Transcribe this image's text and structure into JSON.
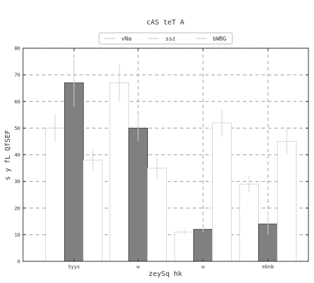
{
  "chart_data": {
    "type": "bar",
    "title": "cAS teT A",
    "xlabel": "zeySq hk",
    "ylabel": "s y fL QfSEF",
    "categories": [
      "Syyx",
      "w",
      "w",
      "eGnb"
    ],
    "ylim": [
      0,
      80
    ],
    "yticks": [
      0,
      10,
      20,
      30,
      40,
      50,
      60,
      70,
      80
    ],
    "grid": true,
    "legend_position": "top-center",
    "series": [
      {
        "name": "vNa",
        "values": [
          50,
          67,
          11,
          29
        ],
        "errors": [
          5,
          7,
          1,
          3
        ],
        "color": "#ffffff"
      },
      {
        "name": "ssz",
        "values": [
          67,
          50,
          12,
          14
        ],
        "errors": [
          9,
          5,
          1,
          4
        ],
        "color": "#808080"
      },
      {
        "name": "bWBG",
        "values": [
          38,
          35,
          52,
          45
        ],
        "errors": [
          4,
          4,
          5,
          5
        ],
        "color": "#ffffff"
      }
    ]
  }
}
